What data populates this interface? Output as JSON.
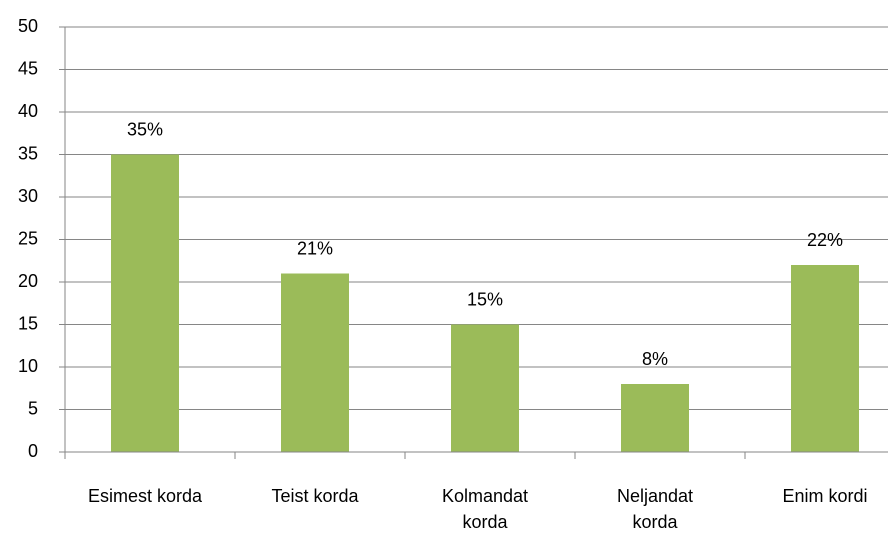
{
  "chart_data": {
    "type": "bar",
    "categories": [
      "Esimest korda",
      "Teist korda",
      "Kolmandat\nkorda",
      "Neljandat\nkorda",
      "Enim kordi"
    ],
    "values": [
      35,
      21,
      15,
      8,
      22
    ],
    "value_labels": [
      "35%",
      "21%",
      "15%",
      "8%",
      "22%"
    ],
    "color": "#9bbb59",
    "ylim": [
      0,
      50
    ],
    "yticks": [
      0,
      5,
      10,
      15,
      20,
      25,
      30,
      35,
      40,
      45,
      50
    ],
    "grid": true
  }
}
